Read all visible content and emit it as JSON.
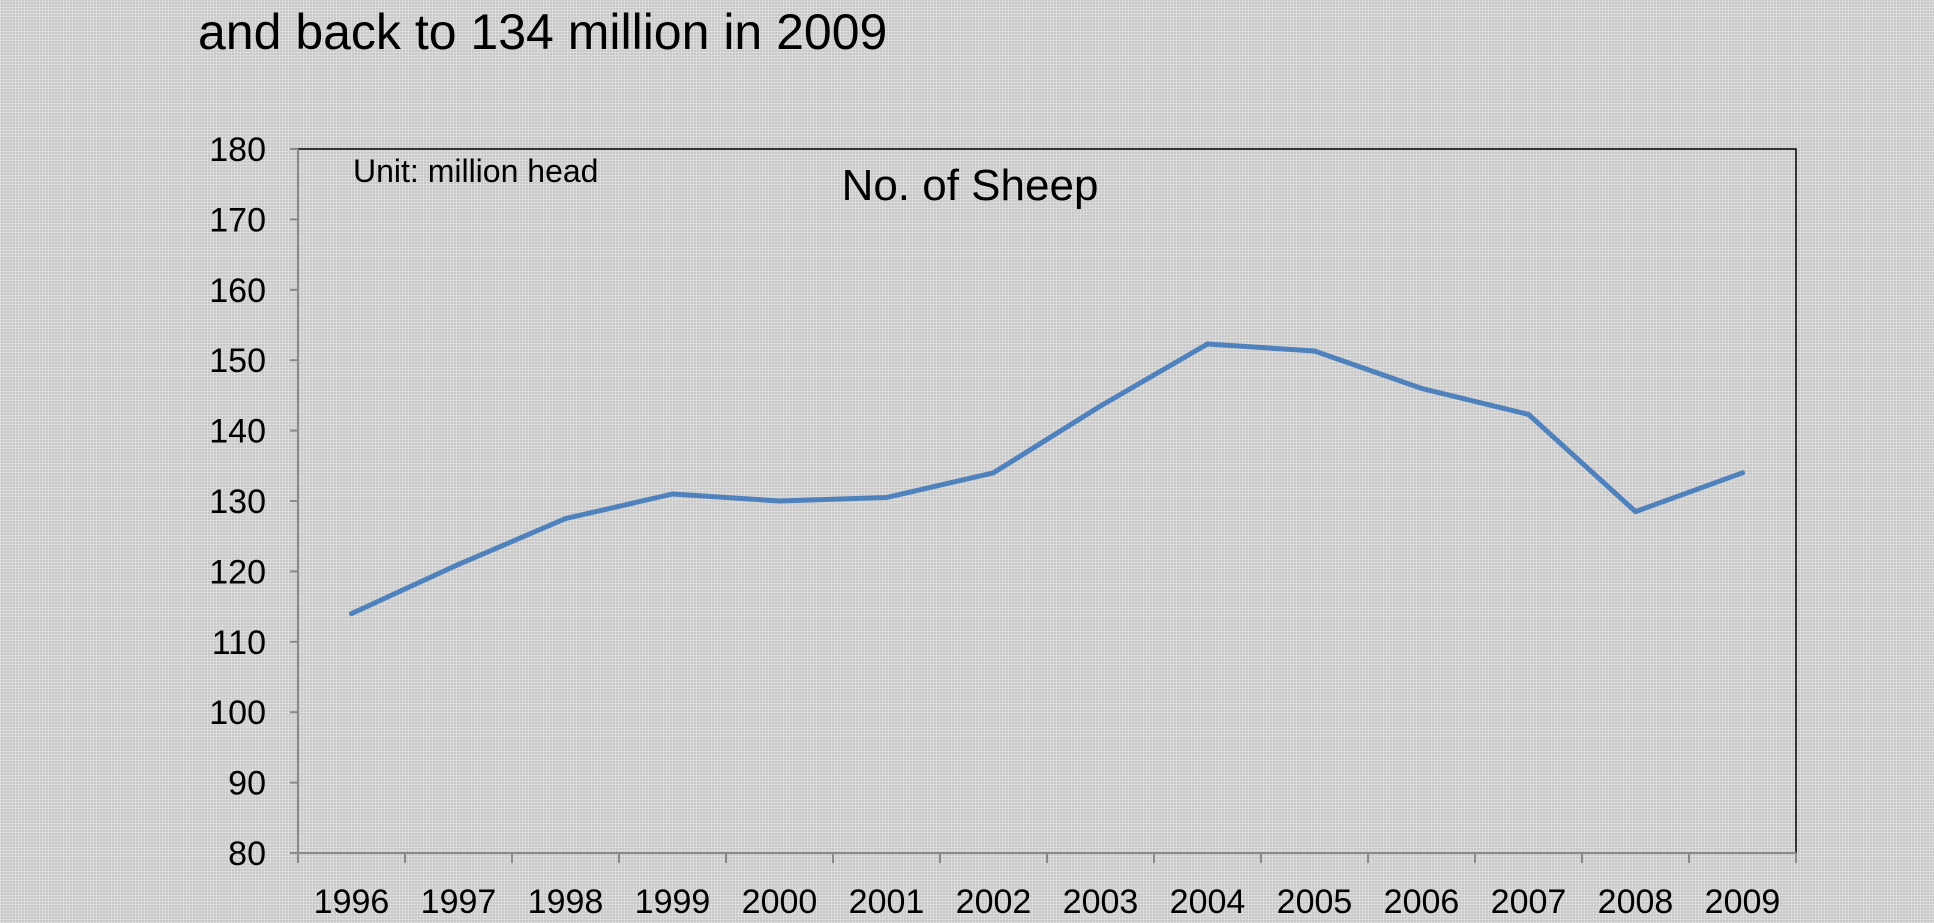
{
  "slide": {
    "title": "and back to 134 million in 2009"
  },
  "chart_data": {
    "type": "line",
    "title": "No. of Sheep",
    "unit_note": "Unit: million head",
    "xlabel": "",
    "ylabel": "",
    "categories": [
      "1996",
      "1997",
      "1998",
      "1999",
      "2000",
      "2001",
      "2002",
      "2003",
      "2004",
      "2005",
      "2006",
      "2007",
      "2008",
      "2009"
    ],
    "series": [
      {
        "values": [
          114,
          121,
          127.5,
          131,
          130,
          130.5,
          134,
          143.5,
          152.3,
          151.3,
          146,
          142.3,
          128.5,
          134
        ],
        "color": "#4f81bd"
      }
    ],
    "ylim": [
      80,
      180
    ],
    "yticks": [
      80,
      90,
      100,
      110,
      120,
      130,
      140,
      150,
      160,
      170,
      180
    ],
    "grid": false,
    "legend": "none"
  }
}
